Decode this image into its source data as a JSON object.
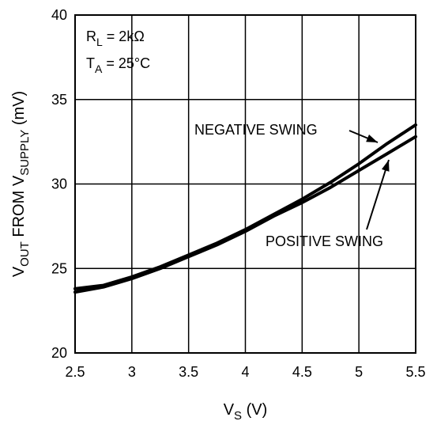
{
  "chart_data": {
    "type": "line",
    "xlabel": {
      "main": "V",
      "sub": "S",
      "unit": " (V)"
    },
    "ylabel": {
      "p1": "V",
      "s1": "OUT",
      "p2": " FROM V",
      "s2": "SUPPLY",
      "p3": " (mV)"
    },
    "xlim": [
      2.5,
      5.5
    ],
    "ylim": [
      20,
      40
    ],
    "xticks": [
      "2.5",
      "3",
      "3.5",
      "4",
      "4.5",
      "5",
      "5.5"
    ],
    "yticks": [
      "20",
      "25",
      "30",
      "35",
      "40"
    ],
    "grid": true,
    "conditions": [
      {
        "main": "R",
        "sub": "L",
        "rest": " = 2kΩ"
      },
      {
        "main": "T",
        "sub": "A",
        "rest": " = 25°C"
      }
    ],
    "annotations": {
      "negative": "NEGATIVE SWING",
      "positive": "POSITIVE SWING"
    },
    "series": [
      {
        "name": "NEGATIVE SWING",
        "x": [
          2.5,
          2.75,
          3.0,
          3.25,
          3.5,
          3.75,
          4.0,
          4.25,
          4.5,
          4.75,
          5.0,
          5.25,
          5.5
        ],
        "y": [
          23.8,
          24.0,
          24.5,
          25.1,
          25.8,
          26.5,
          27.3,
          28.2,
          29.1,
          30.1,
          31.2,
          32.4,
          33.5
        ]
      },
      {
        "name": "POSITIVE SWING",
        "x": [
          2.5,
          2.75,
          3.0,
          3.25,
          3.5,
          3.75,
          4.0,
          4.25,
          4.5,
          4.75,
          5.0,
          5.25,
          5.5
        ],
        "y": [
          23.6,
          23.9,
          24.4,
          25.0,
          25.7,
          26.4,
          27.2,
          28.1,
          28.9,
          29.8,
          30.8,
          31.8,
          32.8
        ]
      }
    ]
  }
}
